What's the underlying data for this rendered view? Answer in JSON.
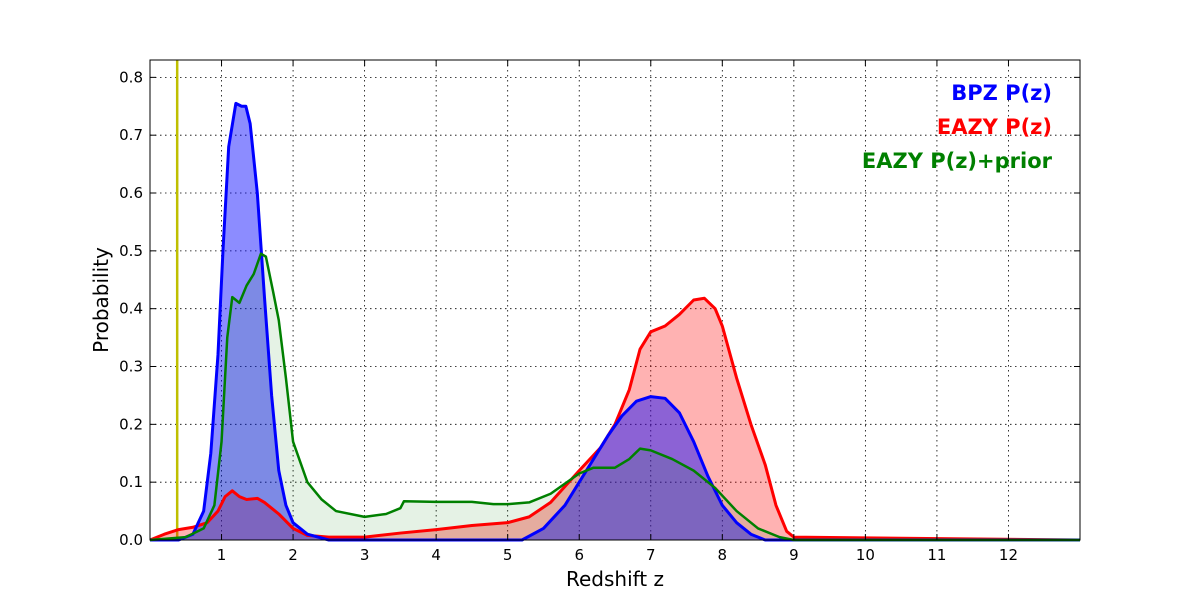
{
  "chart_data": {
    "type": "area",
    "title": "",
    "xlabel": "Redshift z",
    "ylabel": "Probability",
    "xlim": [
      0,
      13
    ],
    "ylim": [
      0,
      0.83
    ],
    "xticks": [
      1,
      2,
      3,
      4,
      5,
      6,
      7,
      8,
      9,
      10,
      11,
      12
    ],
    "xtick_labels": [
      "1",
      "2",
      "3",
      "4",
      "5",
      "6",
      "7",
      "8",
      "9",
      "10",
      "11",
      "12"
    ],
    "yticks": [
      0.0,
      0.1,
      0.2,
      0.3,
      0.4,
      0.5,
      0.6,
      0.7,
      0.8
    ],
    "ytick_labels": [
      "0.0",
      "0.1",
      "0.2",
      "0.3",
      "0.4",
      "0.5",
      "0.6",
      "0.7",
      "0.8"
    ],
    "grid": true,
    "legend_position": "top-right",
    "vertical_line": {
      "x": 0.38,
      "color": "#bfbf00"
    },
    "series": [
      {
        "name": "BPZ P(z)",
        "color": "#0000ff",
        "fill": "#0000ff",
        "fill_opacity": 0.45,
        "line_width": 3,
        "points": [
          [
            0,
            0
          ],
          [
            0.4,
            0
          ],
          [
            0.6,
            0.01
          ],
          [
            0.75,
            0.05
          ],
          [
            0.85,
            0.15
          ],
          [
            0.95,
            0.32
          ],
          [
            1.02,
            0.5
          ],
          [
            1.1,
            0.68
          ],
          [
            1.2,
            0.755
          ],
          [
            1.28,
            0.75
          ],
          [
            1.34,
            0.75
          ],
          [
            1.4,
            0.72
          ],
          [
            1.5,
            0.6
          ],
          [
            1.6,
            0.42
          ],
          [
            1.7,
            0.25
          ],
          [
            1.8,
            0.12
          ],
          [
            1.9,
            0.06
          ],
          [
            2.0,
            0.03
          ],
          [
            2.2,
            0.01
          ],
          [
            2.5,
            0.0
          ],
          [
            5.2,
            0.0
          ],
          [
            5.5,
            0.02
          ],
          [
            5.8,
            0.06
          ],
          [
            6.0,
            0.1
          ],
          [
            6.2,
            0.14
          ],
          [
            6.4,
            0.18
          ],
          [
            6.6,
            0.215
          ],
          [
            6.8,
            0.24
          ],
          [
            7.0,
            0.248
          ],
          [
            7.2,
            0.245
          ],
          [
            7.4,
            0.22
          ],
          [
            7.6,
            0.17
          ],
          [
            7.8,
            0.11
          ],
          [
            8.0,
            0.06
          ],
          [
            8.2,
            0.03
          ],
          [
            8.4,
            0.01
          ],
          [
            8.6,
            0.0
          ],
          [
            13,
            0.0
          ]
        ]
      },
      {
        "name": "EAZY P(z)",
        "color": "#ff0000",
        "fill": "#ff0000",
        "fill_opacity": 0.3,
        "line_width": 3,
        "points": [
          [
            0,
            0
          ],
          [
            0.2,
            0.01
          ],
          [
            0.4,
            0.018
          ],
          [
            0.6,
            0.022
          ],
          [
            0.8,
            0.03
          ],
          [
            0.95,
            0.05
          ],
          [
            1.05,
            0.075
          ],
          [
            1.15,
            0.085
          ],
          [
            1.25,
            0.075
          ],
          [
            1.35,
            0.07
          ],
          [
            1.5,
            0.072
          ],
          [
            1.6,
            0.065
          ],
          [
            1.8,
            0.045
          ],
          [
            2.0,
            0.02
          ],
          [
            2.2,
            0.008
          ],
          [
            2.5,
            0.005
          ],
          [
            3.0,
            0.005
          ],
          [
            3.5,
            0.012
          ],
          [
            4.0,
            0.018
          ],
          [
            4.5,
            0.025
          ],
          [
            5.0,
            0.03
          ],
          [
            5.3,
            0.04
          ],
          [
            5.6,
            0.065
          ],
          [
            6.0,
            0.12
          ],
          [
            6.3,
            0.16
          ],
          [
            6.5,
            0.2
          ],
          [
            6.7,
            0.26
          ],
          [
            6.85,
            0.33
          ],
          [
            7.0,
            0.36
          ],
          [
            7.2,
            0.37
          ],
          [
            7.4,
            0.39
          ],
          [
            7.6,
            0.415
          ],
          [
            7.75,
            0.418
          ],
          [
            7.9,
            0.4
          ],
          [
            8.0,
            0.37
          ],
          [
            8.2,
            0.28
          ],
          [
            8.4,
            0.2
          ],
          [
            8.6,
            0.13
          ],
          [
            8.75,
            0.06
          ],
          [
            8.9,
            0.015
          ],
          [
            9.0,
            0.005
          ],
          [
            10.5,
            0.003
          ],
          [
            13,
            0.0
          ]
        ]
      },
      {
        "name": "EAZY P(z)+prior",
        "color": "#008000",
        "fill": "#008000",
        "fill_opacity": 0.1,
        "line_width": 2.5,
        "points": [
          [
            0,
            0
          ],
          [
            0.5,
            0.005
          ],
          [
            0.75,
            0.02
          ],
          [
            0.9,
            0.06
          ],
          [
            1.0,
            0.17
          ],
          [
            1.08,
            0.35
          ],
          [
            1.15,
            0.42
          ],
          [
            1.25,
            0.41
          ],
          [
            1.35,
            0.44
          ],
          [
            1.45,
            0.46
          ],
          [
            1.55,
            0.495
          ],
          [
            1.62,
            0.49
          ],
          [
            1.72,
            0.43
          ],
          [
            1.8,
            0.38
          ],
          [
            1.9,
            0.28
          ],
          [
            2.0,
            0.17
          ],
          [
            2.2,
            0.1
          ],
          [
            2.4,
            0.07
          ],
          [
            2.6,
            0.05
          ],
          [
            3.0,
            0.04
          ],
          [
            3.3,
            0.045
          ],
          [
            3.5,
            0.055
          ],
          [
            3.55,
            0.067
          ],
          [
            4.0,
            0.066
          ],
          [
            4.5,
            0.066
          ],
          [
            4.8,
            0.062
          ],
          [
            5.0,
            0.062
          ],
          [
            5.3,
            0.065
          ],
          [
            5.6,
            0.08
          ],
          [
            6.0,
            0.115
          ],
          [
            6.2,
            0.125
          ],
          [
            6.5,
            0.125
          ],
          [
            6.7,
            0.14
          ],
          [
            6.85,
            0.158
          ],
          [
            7.0,
            0.155
          ],
          [
            7.3,
            0.14
          ],
          [
            7.6,
            0.12
          ],
          [
            7.9,
            0.09
          ],
          [
            8.2,
            0.05
          ],
          [
            8.5,
            0.02
          ],
          [
            8.8,
            0.005
          ],
          [
            9.0,
            0.0
          ],
          [
            13,
            0.0
          ]
        ]
      }
    ]
  }
}
